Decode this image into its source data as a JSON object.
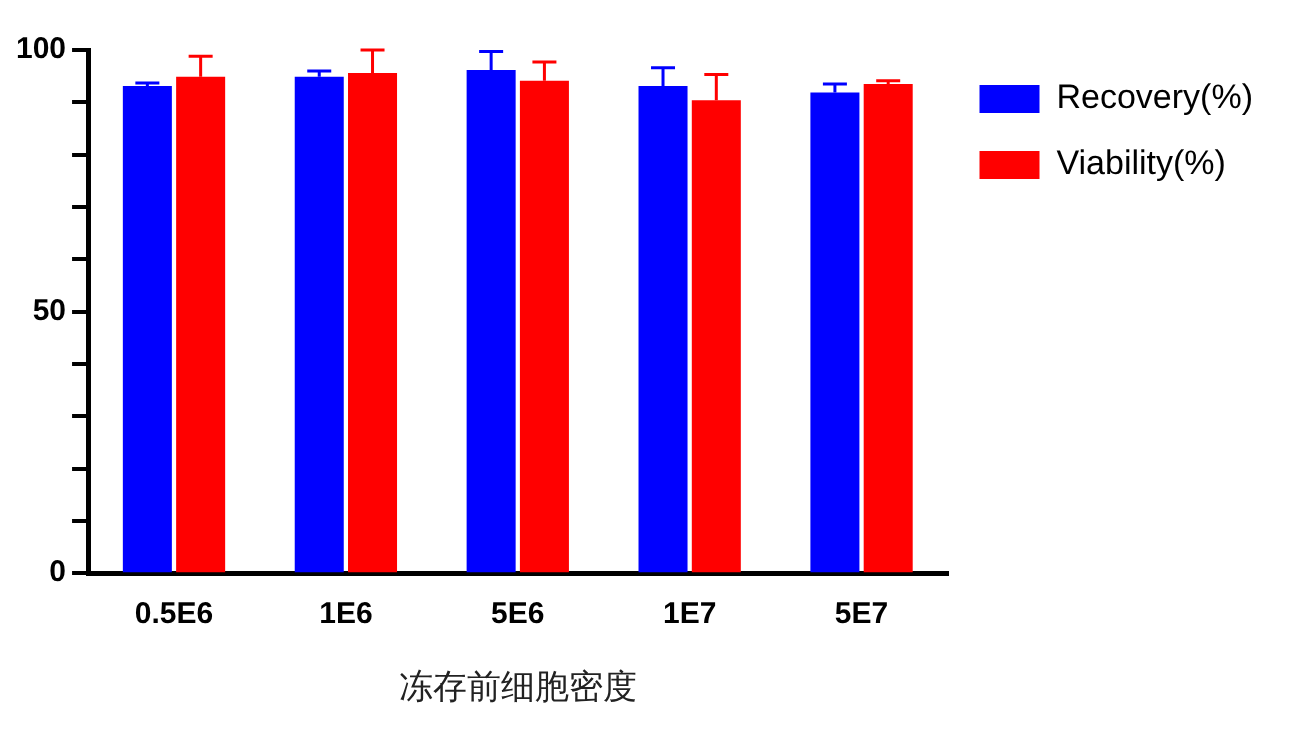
{
  "chart_data": {
    "type": "bar",
    "xlabel": "冻存前细胞密度",
    "categories": [
      "0.5E6",
      "1E6",
      "5E6",
      "1E7",
      "5E7"
    ],
    "series": [
      {
        "name": "Recovery(%)",
        "color": "#0000ff",
        "values": [
          93.1,
          94.9,
          96.2,
          93.1,
          91.9
        ],
        "errors": [
          [
            93.1,
            93.7
          ],
          [
            94.9,
            96.0
          ],
          [
            96.2,
            99.7
          ],
          [
            93.1,
            96.6
          ],
          [
            91.9,
            93.5
          ]
        ]
      },
      {
        "name": "Viability(%)",
        "color": "#ff0000",
        "values": [
          94.9,
          95.6,
          94.1,
          90.4,
          93.5
        ],
        "errors": [
          [
            94.9,
            98.8
          ],
          [
            95.6,
            100
          ],
          [
            94.1,
            97.7
          ],
          [
            90.4,
            95.3
          ],
          [
            93.5,
            94.1
          ]
        ]
      }
    ],
    "ylim": [
      0,
      100
    ],
    "yticks": [
      0,
      {
        "value": 10,
        "label": null
      },
      {
        "value": 20,
        "label": null
      },
      {
        "value": 30,
        "label": null
      },
      {
        "value": 40,
        "label": null
      },
      50,
      {
        "value": 60,
        "label": null
      },
      {
        "value": 70,
        "label": null
      },
      {
        "value": 80,
        "label": null
      },
      {
        "value": 90,
        "label": null
      },
      100
    ],
    "grid": false,
    "legend": "top right"
  }
}
